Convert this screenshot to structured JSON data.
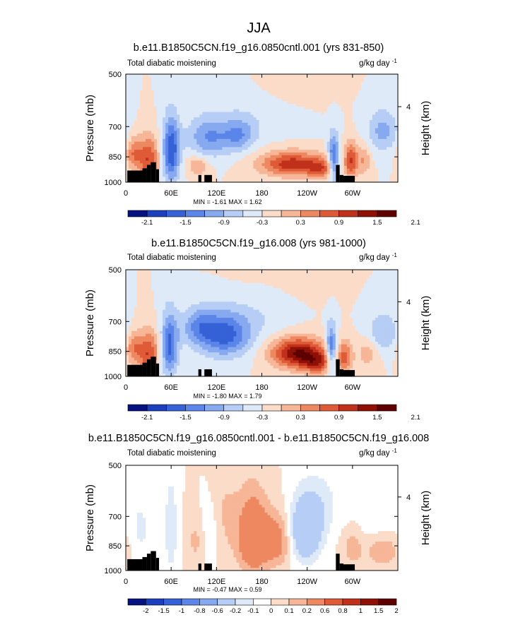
{
  "figure_title": "JJA",
  "colors": {
    "divergent_12": [
      "#05127f",
      "#1b3fbd",
      "#3562d6",
      "#5b85e8",
      "#86a9f0",
      "#b6cdf5",
      "#dfeaf8",
      "#fbdcc9",
      "#f6b697",
      "#ee8861",
      "#df5a37",
      "#c0301b",
      "#8f1105",
      "#5e0000"
    ],
    "diff_14": [
      "#05127f",
      "#1b3fbd",
      "#3562d6",
      "#5b85e8",
      "#86a9f0",
      "#b6cdf5",
      "#dfeaf8",
      "#ffffff",
      "#fbdcc9",
      "#f6b697",
      "#ee8861",
      "#df5a37",
      "#c0301b",
      "#8f1105",
      "#5e0000"
    ],
    "terrain": "#000000"
  },
  "chart_data": [
    {
      "type": "heatmap",
      "title": "b.e11.B1850C5CN.f19_g16.0850cntl.001 (yrs 831-850)",
      "left_label": "Total diabatic moistening",
      "units_label": "g/kg day",
      "units_exp": "-1",
      "ylabel": "Pressure (mb)",
      "y2label": "Height (km)",
      "y_ticks": [
        "500",
        "700",
        "850",
        "1000"
      ],
      "y2_ticks": [
        "4"
      ],
      "x_ticks": [
        "0",
        "60E",
        "120E",
        "180",
        "120W",
        "60W"
      ],
      "minmax": "MIN = -1.61   MAX =  1.62",
      "xlim": [
        0,
        360
      ],
      "ylim_p": [
        1000,
        500
      ],
      "levels": [
        -2.4,
        -2.1,
        -1.8,
        -1.5,
        -1.2,
        -0.9,
        -0.6,
        -0.3,
        0,
        0.3,
        0.6,
        0.9,
        1.2,
        1.5,
        1.8,
        2.1,
        2.4
      ],
      "colorbar_labels": [
        "-2.1",
        "-1.5",
        "-0.9",
        "-0.3",
        "0.3",
        "0.9",
        "1.5",
        "2.1"
      ],
      "palette": "divergent_12",
      "features": [
        {
          "lon": 30,
          "p": 860,
          "amp": 1.2,
          "sx": 10,
          "sy": 85
        },
        {
          "lon": 10,
          "p": 830,
          "amp": 0.8,
          "sx": 7,
          "sy": 60
        },
        {
          "lon": 60,
          "p": 820,
          "amp": -1.5,
          "sx": 8,
          "sy": 120
        },
        {
          "lon": 110,
          "p": 750,
          "amp": -0.9,
          "sx": 20,
          "sy": 70
        },
        {
          "lon": 150,
          "p": 740,
          "amp": -0.8,
          "sx": 15,
          "sy": 55
        },
        {
          "lon": 95,
          "p": 900,
          "amp": 0.6,
          "sx": 10,
          "sy": 40
        },
        {
          "lon": 180,
          "p": 620,
          "amp": -0.3,
          "sx": 40,
          "sy": 90
        },
        {
          "lon": 220,
          "p": 890,
          "amp": 1.4,
          "sx": 30,
          "sy": 50
        },
        {
          "lon": 258,
          "p": 920,
          "amp": 0.8,
          "sx": 12,
          "sy": 40
        },
        {
          "lon": 275,
          "p": 860,
          "amp": -1.4,
          "sx": 5,
          "sy": 90
        },
        {
          "lon": 298,
          "p": 870,
          "amp": 1.2,
          "sx": 6,
          "sy": 70
        },
        {
          "lon": 315,
          "p": 870,
          "amp": 0.6,
          "sx": 6,
          "sy": 60
        },
        {
          "lon": 340,
          "p": 720,
          "amp": -0.7,
          "sx": 15,
          "sy": 70
        },
        {
          "lon": 200,
          "p": 560,
          "amp": 0.25,
          "sx": 40,
          "sy": 70
        }
      ]
    },
    {
      "type": "heatmap",
      "title": "b.e11.B1850C5CN.f19_g16.008 (yrs 981-1000)",
      "left_label": "Total diabatic moistening",
      "units_label": "g/kg day",
      "units_exp": "-1",
      "ylabel": "Pressure (mb)",
      "y2label": "Height (km)",
      "y_ticks": [
        "500",
        "700",
        "850",
        "1000"
      ],
      "y2_ticks": [
        "4"
      ],
      "x_ticks": [
        "0",
        "60E",
        "120E",
        "180",
        "120W",
        "60W"
      ],
      "minmax": "MIN = -1.80   MAX =  1.79",
      "xlim": [
        0,
        360
      ],
      "ylim_p": [
        1000,
        500
      ],
      "levels": [
        -2.4,
        -2.1,
        -1.8,
        -1.5,
        -1.2,
        -0.9,
        -0.6,
        -0.3,
        0,
        0.3,
        0.6,
        0.9,
        1.2,
        1.5,
        1.8,
        2.1,
        2.4
      ],
      "colorbar_labels": [
        "-2.1",
        "-1.5",
        "-0.9",
        "-0.3",
        "0.3",
        "0.9",
        "1.5",
        "2.1"
      ],
      "palette": "divergent_12",
      "features": [
        {
          "lon": 30,
          "p": 860,
          "amp": 1.2,
          "sx": 10,
          "sy": 85
        },
        {
          "lon": 10,
          "p": 830,
          "amp": 0.8,
          "sx": 7,
          "sy": 60
        },
        {
          "lon": 58,
          "p": 820,
          "amp": -1.3,
          "sx": 8,
          "sy": 120
        },
        {
          "lon": 130,
          "p": 760,
          "amp": -1.4,
          "sx": 25,
          "sy": 80
        },
        {
          "lon": 95,
          "p": 720,
          "amp": -0.7,
          "sx": 15,
          "sy": 60
        },
        {
          "lon": 190,
          "p": 640,
          "amp": -0.3,
          "sx": 30,
          "sy": 90
        },
        {
          "lon": 228,
          "p": 860,
          "amp": 1.8,
          "sx": 25,
          "sy": 60
        },
        {
          "lon": 255,
          "p": 920,
          "amp": 1.0,
          "sx": 15,
          "sy": 45
        },
        {
          "lon": 272,
          "p": 840,
          "amp": -1.4,
          "sx": 5,
          "sy": 90
        },
        {
          "lon": 290,
          "p": 880,
          "amp": 0.9,
          "sx": 7,
          "sy": 65
        },
        {
          "lon": 320,
          "p": 860,
          "amp": 0.5,
          "sx": 10,
          "sy": 60
        },
        {
          "lon": 340,
          "p": 750,
          "amp": -0.6,
          "sx": 15,
          "sy": 70
        },
        {
          "lon": 200,
          "p": 560,
          "amp": 0.2,
          "sx": 40,
          "sy": 70
        }
      ]
    },
    {
      "type": "heatmap",
      "title": "b.e11.B1850C5CN.f19_g16.0850cntl.001 - b.e11.B1850C5CN.f19_g16.008",
      "left_label": "Total diabatic moistening",
      "units_label": "g/kg day",
      "units_exp": "-1",
      "ylabel": "Pressure (mb)",
      "y2label": "Height (km)",
      "y_ticks": [
        "500",
        "700",
        "850",
        "1000"
      ],
      "y2_ticks": [
        "4"
      ],
      "x_ticks": [
        "0",
        "60E",
        "120E",
        "180",
        "120W",
        "60W"
      ],
      "minmax": "MIN = -0.47   MAX =  0.59",
      "xlim": [
        0,
        360
      ],
      "ylim_p": [
        1000,
        500
      ],
      "levels": [
        -2.5,
        -2,
        -1.5,
        -1,
        -0.8,
        -0.6,
        -0.2,
        -0.1,
        0,
        0.1,
        0.2,
        0.6,
        0.8,
        1,
        1.5,
        2,
        2.5
      ],
      "colorbar_labels": [
        "-2",
        "-1.5",
        "-1",
        "-0.8",
        "-0.6",
        "-0.2",
        "-0.1",
        "0",
        "0.1",
        "0.2",
        "0.6",
        "0.8",
        "1",
        "1.5",
        "2"
      ],
      "palette": "diff_14",
      "features": [
        {
          "lon": 168,
          "p": 800,
          "amp": 0.4,
          "sx": 14,
          "sy": 150
        },
        {
          "lon": 200,
          "p": 820,
          "amp": 0.3,
          "sx": 15,
          "sy": 100
        },
        {
          "lon": 237,
          "p": 780,
          "amp": -0.45,
          "sx": 15,
          "sy": 110
        },
        {
          "lon": 255,
          "p": 650,
          "amp": -0.15,
          "sx": 20,
          "sy": 100
        },
        {
          "lon": 60,
          "p": 760,
          "amp": -0.2,
          "sx": 6,
          "sy": 160
        },
        {
          "lon": 95,
          "p": 820,
          "amp": 0.15,
          "sx": 10,
          "sy": 100
        },
        {
          "lon": 110,
          "p": 780,
          "amp": -0.15,
          "sx": 10,
          "sy": 120
        },
        {
          "lon": 130,
          "p": 700,
          "amp": 0.12,
          "sx": 15,
          "sy": 150
        },
        {
          "lon": 20,
          "p": 760,
          "amp": -0.12,
          "sx": 10,
          "sy": 120
        },
        {
          "lon": 300,
          "p": 860,
          "amp": 0.15,
          "sx": 10,
          "sy": 80
        },
        {
          "lon": 340,
          "p": 880,
          "amp": 0.2,
          "sx": 15,
          "sy": 60
        },
        {
          "lon": 330,
          "p": 650,
          "amp": -0.1,
          "sx": 20,
          "sy": 100
        }
      ]
    }
  ]
}
